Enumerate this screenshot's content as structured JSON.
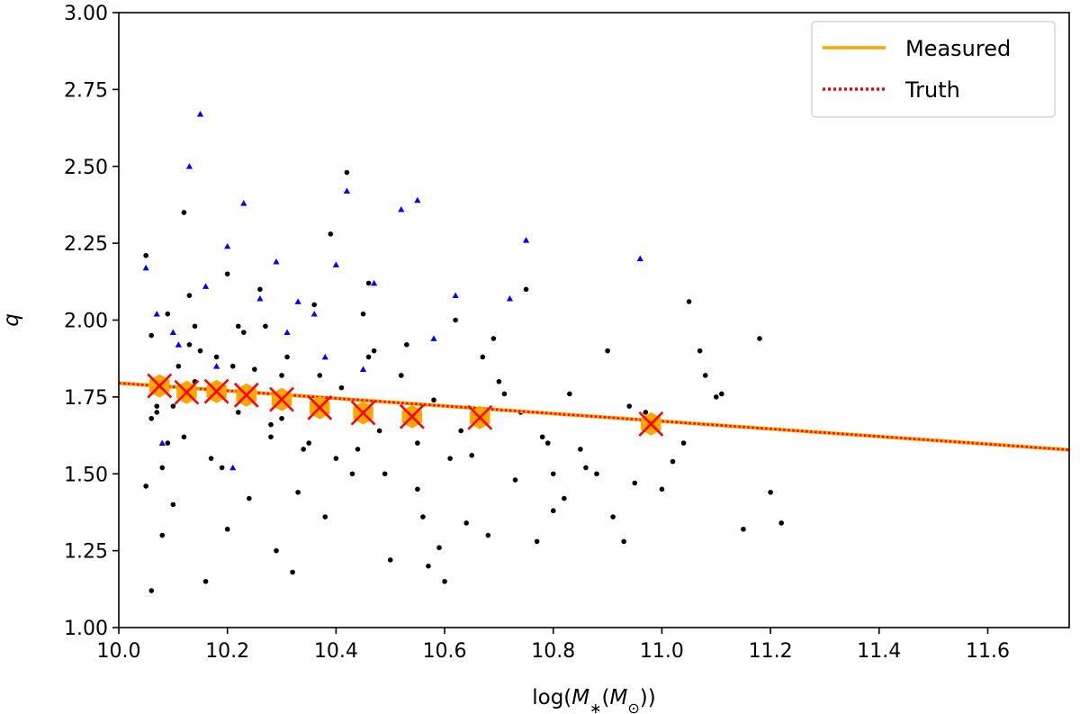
{
  "chart_data": {
    "type": "scatter",
    "xlabel_parts": {
      "pre": "log(",
      "M": "M",
      "star": "∗",
      "open": "(",
      "Msun": "M",
      "sun": "⊙",
      "close": "))"
    },
    "ylabel": "q",
    "xlim": [
      10.0,
      11.75
    ],
    "ylim": [
      1.0,
      3.0
    ],
    "xticks": [
      "10.0",
      "10.2",
      "10.4",
      "10.6",
      "10.8",
      "11.0",
      "11.2",
      "11.4",
      "11.6"
    ],
    "yticks": [
      "1.00",
      "1.25",
      "1.50",
      "1.75",
      "2.00",
      "2.25",
      "2.50",
      "2.75",
      "3.00"
    ],
    "grid": false,
    "legend": {
      "placement": "top-right",
      "entries": [
        "Measured",
        "Truth"
      ]
    },
    "colors": {
      "points": "#000000",
      "upper_limits": "#0000ff",
      "measured": "#ffa500",
      "truth": "#ff0000",
      "binned": "#ffa500",
      "binned_cross": "#ff0000"
    },
    "measured_line": {
      "x": [
        10.0,
        11.75
      ],
      "y": [
        1.795,
        1.578
      ]
    },
    "truth_line": {
      "x": [
        10.0,
        11.75
      ],
      "y": [
        1.795,
        1.578
      ]
    },
    "binned_x": [
      10.075,
      10.125,
      10.18,
      10.235,
      10.3,
      10.37,
      10.45,
      10.54,
      10.665,
      10.98
    ],
    "binned_y": [
      1.786,
      1.765,
      1.768,
      1.756,
      1.742,
      1.715,
      1.698,
      1.686,
      1.683,
      1.662
    ],
    "points_x": [
      10.05,
      10.06,
      10.07,
      10.09,
      10.11,
      10.13,
      10.05,
      10.08,
      10.12,
      10.15,
      10.17,
      10.2,
      10.22,
      10.24,
      10.27,
      10.29,
      10.31,
      10.34,
      10.36,
      10.38,
      10.41,
      10.43,
      10.46,
      10.48,
      10.5,
      10.53,
      10.55,
      10.58,
      10.6,
      10.62,
      10.65,
      10.68,
      10.7,
      10.73,
      10.75,
      10.78,
      10.8,
      10.83,
      10.86,
      10.9,
      10.93,
      10.97,
      11.0,
      11.04,
      11.07,
      11.1,
      11.15,
      11.18,
      11.22,
      10.06,
      10.1,
      10.14,
      10.19,
      10.23,
      10.28,
      10.33,
      10.39,
      10.44,
      10.52,
      10.57,
      10.63,
      10.69,
      10.77,
      10.85,
      10.95,
      11.05,
      10.08,
      10.16,
      10.25,
      10.35,
      10.45,
      10.56,
      10.67,
      10.82,
      10.12,
      10.2,
      10.3,
      10.42,
      10.59,
      10.74,
      10.91,
      11.02,
      11.11,
      10.1,
      10.21,
      10.32,
      10.47,
      10.61,
      10.06,
      10.14,
      10.26,
      10.37,
      10.49,
      10.64,
      10.79,
      10.98,
      10.09,
      10.18,
      10.28,
      10.4,
      10.54,
      10.71,
      10.88,
      11.08,
      11.2,
      10.07,
      10.13,
      10.22,
      10.3,
      10.38,
      10.46,
      10.55,
      10.66,
      10.8,
      10.94
    ],
    "points_y": [
      2.21,
      1.95,
      1.72,
      1.6,
      1.85,
      2.08,
      1.46,
      1.3,
      1.62,
      1.9,
      1.55,
      2.15,
      1.7,
      1.42,
      1.98,
      1.25,
      1.88,
      1.58,
      2.05,
      1.36,
      1.78,
      1.5,
      2.12,
      1.64,
      1.22,
      1.92,
      1.45,
      1.74,
      1.15,
      2.0,
      1.56,
      1.3,
      1.8,
      1.48,
      2.1,
      1.62,
      1.38,
      1.76,
      1.52,
      1.9,
      1.28,
      1.7,
      1.45,
      1.6,
      1.9,
      1.75,
      1.32,
      1.94,
      1.34,
      1.68,
      1.4,
      1.8,
      1.52,
      1.96,
      1.66,
      1.44,
      2.28,
      1.58,
      1.82,
      1.2,
      1.64,
      1.94,
      1.28,
      1.58,
      1.47,
      2.06,
      1.52,
      1.15,
      1.84,
      1.6,
      2.02,
      1.36,
      1.88,
      1.42,
      2.35,
      1.32,
      1.68,
      2.48,
      1.26,
      1.7,
      1.36,
      1.54,
      1.76,
      1.72,
      1.85,
      1.18,
      1.9,
      1.55,
      1.12,
      1.98,
      2.1,
      1.82,
      1.5,
      1.34,
      1.6,
      1.66,
      2.02,
      1.88,
      1.62,
      1.55,
      1.7,
      1.76,
      1.5,
      1.82,
      1.44,
      1.7,
      1.92,
      1.98,
      1.82,
      1.7,
      1.88,
      1.6,
      1.66,
      1.5,
      1.72,
      1.84,
      1.58
    ],
    "limits_x": [
      10.05,
      10.07,
      10.1,
      10.13,
      10.15,
      10.16,
      10.2,
      10.23,
      10.26,
      10.29,
      10.33,
      10.36,
      10.4,
      10.42,
      10.47,
      10.52,
      10.55,
      10.62,
      10.72,
      10.75,
      10.96,
      10.11,
      10.18,
      10.24,
      10.31,
      10.38,
      10.45,
      10.58,
      10.08,
      10.21
    ],
    "limits_y": [
      2.17,
      2.02,
      1.96,
      2.5,
      2.67,
      2.11,
      2.24,
      2.38,
      2.07,
      2.19,
      2.06,
      2.02,
      2.18,
      2.42,
      2.12,
      2.36,
      2.39,
      2.08,
      2.07,
      2.26,
      2.2,
      1.92,
      1.85,
      1.78,
      1.96,
      1.88,
      1.84,
      1.94,
      1.6,
      1.52
    ]
  }
}
